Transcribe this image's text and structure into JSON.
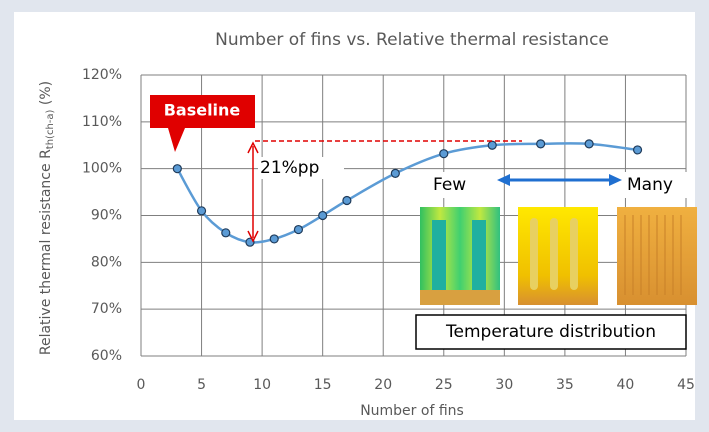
{
  "chart_data": {
    "type": "line",
    "title": "Number of fins vs. Relative thermal resistance",
    "x_label": "Number of fins",
    "y_label": [
      "Relative thermal resistance R",
      "th(ch-a)",
      " (%)"
    ],
    "x": [
      3,
      5,
      7,
      9,
      11,
      13,
      15,
      17,
      21,
      25,
      29,
      33,
      37,
      41
    ],
    "series": [
      {
        "name": "Relative thermal resistance",
        "color": "#5b9bd5",
        "values": [
          100,
          91,
          86.3,
          84.3,
          85,
          87,
          90,
          93.2,
          99,
          103.2,
          105,
          105.3,
          105.3,
          104
        ]
      }
    ],
    "xlim": [
      0,
      45
    ],
    "xticks": [
      0,
      5,
      10,
      15,
      20,
      25,
      30,
      35,
      40,
      45
    ],
    "ylim": [
      60,
      120
    ],
    "yticks": [
      {
        "value": 60,
        "label": "60%"
      },
      {
        "value": 70,
        "label": "70%"
      },
      {
        "value": 80,
        "label": "80%"
      },
      {
        "value": 90,
        "label": "90%"
      },
      {
        "value": 100,
        "label": "100%"
      },
      {
        "value": 110,
        "label": "110%"
      },
      {
        "value": 120,
        "label": "120%"
      }
    ],
    "grid": true,
    "annotations": [
      "Baseline",
      "21%pp",
      "Few",
      "Many",
      "Temperature distribution"
    ]
  }
}
